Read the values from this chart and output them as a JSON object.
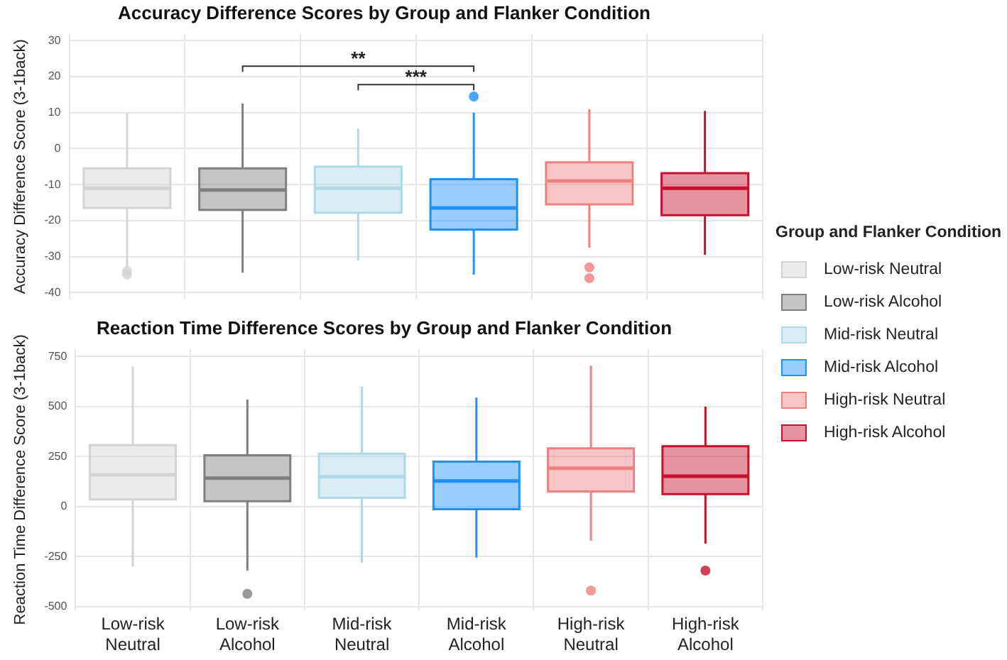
{
  "chart_data": [
    {
      "type": "box",
      "title": "Accuracy Difference Scores by Group and Flanker Condition",
      "ylabel": "Accuracy Difference Score (3-1back)",
      "series": [
        {
          "name": "Low-risk Neutral",
          "color": "#d3d3d3",
          "boxes": [
            {
              "low": -33,
              "q1": -16.5,
              "median": -11,
              "q3": -5.5,
              "high": 10,
              "outliers": [
                -34,
                -35
              ]
            },
            null,
            null,
            null,
            null,
            null
          ]
        },
        {
          "name": "Low-risk Alcohol",
          "color": "#7f7f7f",
          "boxes": [
            null,
            {
              "low": -34.5,
              "q1": -17,
              "median": -11.5,
              "q3": -5.5,
              "high": 12.5
            },
            null,
            null,
            null,
            null
          ]
        },
        {
          "name": "Mid-risk Neutral",
          "color": "#add8e6",
          "boxes": [
            null,
            null,
            {
              "low": -31,
              "q1": -17.8,
              "median": -11,
              "q3": -5,
              "high": 5.5
            },
            null,
            null,
            null
          ]
        },
        {
          "name": "Mid-risk Alcohol",
          "color": "#1e90ff",
          "boxes": [
            null,
            null,
            null,
            {
              "low": -35,
              "q1": -22.5,
              "median": -16.5,
              "q3": -8.5,
              "high": 10,
              "outliers": [
                14.5
              ]
            },
            null,
            null
          ]
        },
        {
          "name": "High-risk Neutral",
          "color": "#f08080",
          "boxes": [
            null,
            null,
            null,
            null,
            {
              "low": -27.5,
              "q1": -15.5,
              "median": -9,
              "q3": -3.8,
              "high": 11,
              "outliers": [
                -33,
                -36
              ]
            },
            null
          ]
        },
        {
          "name": "High-risk Alcohol",
          "color": "#c8102e",
          "boxes": [
            null,
            null,
            null,
            null,
            null,
            {
              "low": -29.5,
              "q1": -18.5,
              "median": -11,
              "q3": -6.8,
              "high": 10.5
            }
          ]
        }
      ],
      "ylim": [
        -42,
        32
      ],
      "yticks": [
        -40,
        -30,
        -20,
        -10,
        0,
        10,
        20,
        30
      ],
      "grid": true,
      "tick_labels": "y",
      "legend": "right",
      "legend_title": "Group and Flanker Condition",
      "annotations": [
        "**",
        "***"
      ]
    },
    {
      "type": "box",
      "title": "Reaction Time Difference Scores by Group and Flanker Condition",
      "ylabel": "Reaction Time Difference Score (3-1back)",
      "categories": [
        "Low-risk Neutral",
        "Low-risk Alcohol",
        "Mid-risk Neutral",
        "Mid-risk Alcohol",
        "High-risk Neutral",
        "High-risk Alcohol"
      ],
      "series": [
        {
          "color": "#d3d3d3",
          "boxes": [
            {
              "low": -300,
              "q1": 36,
              "median": 159,
              "q3": 307,
              "high": 700
            },
            null,
            null,
            null,
            null,
            null
          ]
        },
        {
          "color": "#7f7f7f",
          "boxes": [
            null,
            {
              "low": -320,
              "q1": 27,
              "median": 142,
              "q3": 257,
              "high": 535,
              "outliers": [
                -436
              ]
            },
            null,
            null,
            null,
            null
          ]
        },
        {
          "color": "#add8e6",
          "boxes": [
            null,
            null,
            {
              "low": -280,
              "q1": 44,
              "median": 149,
              "q3": 265,
              "high": 600
            },
            null,
            null,
            null
          ]
        },
        {
          "color": "#1e90ff",
          "boxes": [
            null,
            null,
            null,
            {
              "low": -255,
              "q1": -13,
              "median": 128,
              "q3": 225,
              "high": 545
            },
            null,
            null
          ]
        },
        {
          "color": "#f08080",
          "boxes": [
            null,
            null,
            null,
            null,
            {
              "low": -170,
              "q1": 76,
              "median": 192,
              "q3": 291,
              "high": 705,
              "outliers": [
                -420
              ]
            },
            null
          ]
        },
        {
          "color": "#c8102e",
          "boxes": [
            null,
            null,
            null,
            null,
            null,
            {
              "low": -185,
              "q1": 62,
              "median": 152,
              "q3": 302,
              "high": 500,
              "outliers": [
                -320
              ]
            }
          ]
        }
      ],
      "ylim": [
        -520,
        790
      ],
      "yticks": [
        -500,
        -250,
        0,
        250,
        500,
        750
      ],
      "grid": true
    }
  ]
}
